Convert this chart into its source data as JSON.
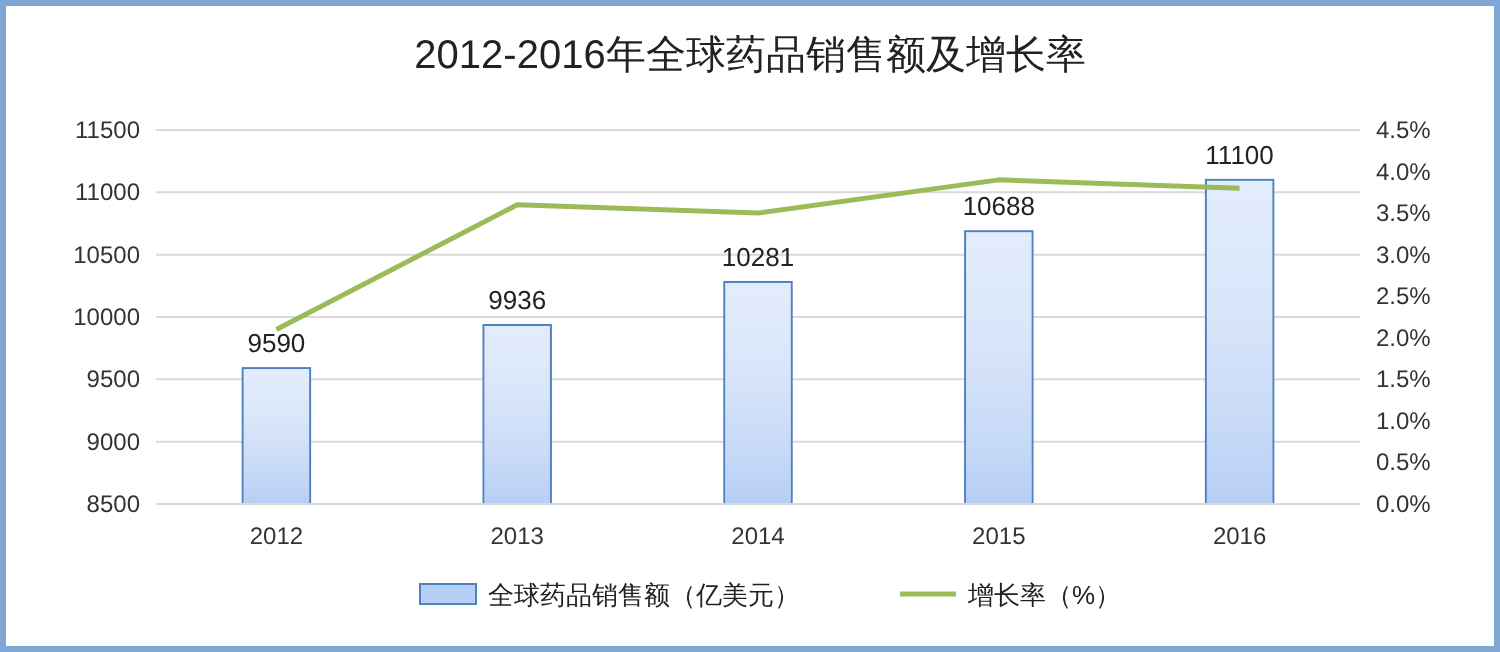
{
  "chart_data": {
    "type": "bar",
    "title": "2012-2016年全球药品销售额及增长率",
    "categories": [
      "2012",
      "2013",
      "2014",
      "2015",
      "2016"
    ],
    "series": [
      {
        "name": "全球药品销售额（亿美元）",
        "color": "#b7cff5",
        "values": [
          9590,
          9936,
          10281,
          10688,
          11100
        ],
        "value_labels": [
          "9590",
          "9936",
          "10281",
          "10688",
          "11100"
        ]
      },
      {
        "name": "增长率（%）",
        "type": "line",
        "axis": "y2",
        "color": "#9bbb59",
        "values": [
          2.1,
          3.6,
          3.5,
          3.9,
          3.8
        ]
      }
    ],
    "ylim": [
      8500,
      11500
    ],
    "yticks": [
      8500,
      9000,
      9500,
      10000,
      10500,
      11000,
      11500
    ],
    "y2lim": [
      0,
      4.5
    ],
    "y2ticks": [
      {
        "value": 0,
        "label": "0.0%"
      },
      {
        "value": 0.5,
        "label": "0.5%"
      },
      {
        "value": 1,
        "label": "1.0%"
      },
      {
        "value": 1.5,
        "label": "1.5%"
      },
      {
        "value": 2,
        "label": "2.0%"
      },
      {
        "value": 2.5,
        "label": "2.5%"
      },
      {
        "value": 3,
        "label": "3.0%"
      },
      {
        "value": 3.5,
        "label": "3.5%"
      },
      {
        "value": 4,
        "label": "4.0%"
      },
      {
        "value": 4.5,
        "label": "4.5%"
      }
    ],
    "grid": "y",
    "legend": "bottom",
    "marker": "none"
  }
}
